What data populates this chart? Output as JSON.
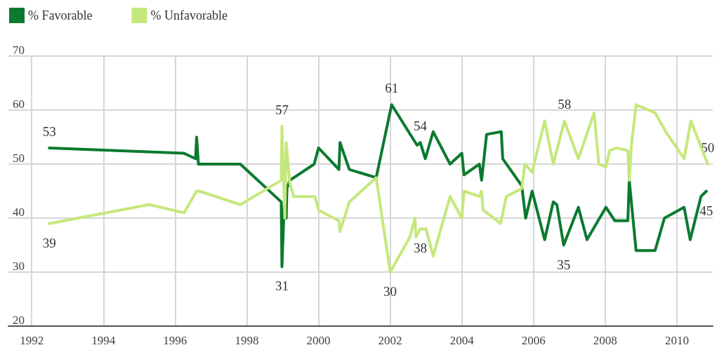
{
  "chart_data": {
    "type": "line",
    "xlim": [
      1991.35,
      2011
    ],
    "xticks": [
      1992,
      1994,
      1996,
      1998,
      2000,
      2002,
      2004,
      2006,
      2008,
      2010
    ],
    "ylim": [
      20,
      70
    ],
    "yticks": [
      20,
      30,
      40,
      50,
      60,
      70
    ],
    "grid": true,
    "legend": "top left",
    "marker": "none",
    "line_style": "solid",
    "series": [
      {
        "name": "% Favorable",
        "color": "#0b7a30",
        "x": [
          1992.49,
          1996.25,
          1996.57,
          1996.6,
          1996.65,
          1997.82,
          1998.96,
          1998.98,
          1999.06,
          1999.1,
          1999.12,
          1999.2,
          1999.88,
          2000.0,
          2000.57,
          2000.6,
          2000.86,
          2001.61,
          2002.04,
          2002.75,
          2002.84,
          2002.98,
          2003.2,
          2003.67,
          2004.0,
          2004.06,
          2004.49,
          2004.55,
          2004.69,
          2005.1,
          2005.14,
          2005.67,
          2005.78,
          2005.96,
          2006.31,
          2006.55,
          2006.65,
          2006.84,
          2007.25,
          2007.49,
          2008.02,
          2008.27,
          2008.63,
          2008.67,
          2008.86,
          2009.39,
          2009.65,
          2010.2,
          2010.37,
          2010.67,
          2010.82
        ],
        "values": [
          53,
          52,
          51,
          55,
          50,
          50,
          43,
          31,
          45,
          40,
          45.5,
          47,
          50,
          53,
          49,
          54,
          49,
          47.5,
          61,
          53.5,
          54,
          51,
          56,
          50,
          52,
          48,
          50,
          47,
          55.5,
          56,
          51,
          46,
          40,
          45,
          36,
          43,
          42.5,
          35,
          42,
          36,
          42,
          39.5,
          39.5,
          47,
          34,
          34,
          40,
          42,
          36,
          44,
          45
        ]
      },
      {
        "name": "% Unfavorable",
        "color": "#c5e87c",
        "x": [
          1992.49,
          1995.27,
          1996.25,
          1996.6,
          1996.67,
          1997.82,
          1998.96,
          1998.98,
          1999.06,
          1999.1,
          1999.2,
          1999.31,
          1999.9,
          2000.0,
          2000.57,
          2000.6,
          2000.86,
          2001.61,
          2002.0,
          2002.55,
          2002.69,
          2002.72,
          2002.84,
          2003.0,
          2003.2,
          2003.67,
          2004.0,
          2004.06,
          2004.49,
          2004.55,
          2004.59,
          2005.08,
          2005.24,
          2005.67,
          2005.76,
          2005.96,
          2006.31,
          2006.55,
          2006.86,
          2007.25,
          2007.69,
          2007.82,
          2008.02,
          2008.12,
          2008.31,
          2008.63,
          2008.67,
          2008.73,
          2008.86,
          2009.39,
          2009.69,
          2010.2,
          2010.39,
          2010.86
        ],
        "values": [
          39,
          42.5,
          41,
          45,
          45,
          42.5,
          47,
          57,
          40,
          54,
          46.5,
          44,
          44,
          41.5,
          39.5,
          37.5,
          43,
          47.5,
          30,
          36.5,
          40,
          36.5,
          38,
          38,
          33,
          44,
          40,
          45,
          44,
          45,
          41.5,
          39,
          44,
          45.5,
          50,
          48.5,
          58,
          50,
          58,
          51,
          59.5,
          50,
          49.5,
          52.5,
          53,
          52.5,
          47,
          53.5,
          61,
          59.5,
          56,
          51,
          58,
          50
        ]
      }
    ],
    "annotations": [
      {
        "text": "53",
        "x": 1992.49,
        "y": 53
      },
      {
        "text": "39",
        "x": 1992.49,
        "y": 39
      },
      {
        "text": "57",
        "x": 1998.98,
        "y": 57
      },
      {
        "text": "31",
        "x": 1998.98,
        "y": 31
      },
      {
        "text": "61",
        "x": 2002.04,
        "y": 61
      },
      {
        "text": "30",
        "x": 2002.0,
        "y": 30
      },
      {
        "text": "54",
        "x": 2002.84,
        "y": 54
      },
      {
        "text": "38",
        "x": 2002.84,
        "y": 38
      },
      {
        "text": "58",
        "x": 2006.86,
        "y": 58
      },
      {
        "text": "35",
        "x": 2006.84,
        "y": 35
      },
      {
        "text": "50",
        "x": 2010.86,
        "y": 50
      },
      {
        "text": "45",
        "x": 2010.82,
        "y": 45
      }
    ]
  }
}
